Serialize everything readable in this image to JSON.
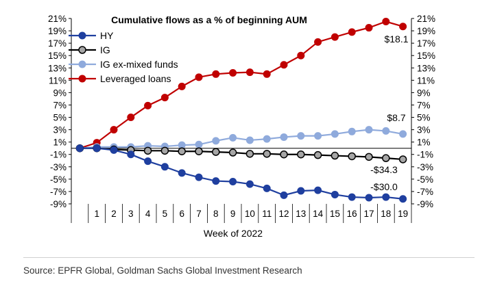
{
  "chart_data": {
    "type": "line",
    "title": "Cumulative flows as a % of beginning AUM",
    "xlabel": "Week of 2022",
    "ylabel": "",
    "x": [
      0,
      1,
      2,
      3,
      4,
      5,
      6,
      7,
      8,
      9,
      10,
      11,
      12,
      13,
      14,
      15,
      16,
      17,
      18,
      19
    ],
    "x_tick_labels": [
      "1",
      "2",
      "3",
      "4",
      "5",
      "6",
      "7",
      "8",
      "9",
      "10",
      "11",
      "12",
      "13",
      "14",
      "15",
      "16",
      "17",
      "18",
      "19"
    ],
    "ylim": [
      -9,
      21
    ],
    "y_tick_labels": [
      "21%",
      "19%",
      "17%",
      "15%",
      "13%",
      "11%",
      "9%",
      "7%",
      "5%",
      "3%",
      "1%",
      "-1%",
      "-3%",
      "-5%",
      "-7%",
      "-9%"
    ],
    "y_ticks": [
      21,
      19,
      17,
      15,
      13,
      11,
      9,
      7,
      5,
      3,
      1,
      -1,
      -3,
      -5,
      -7,
      -9
    ],
    "grid": false,
    "legend": "top-left",
    "series": [
      {
        "name": "HY",
        "color": "#1f3f9f",
        "values": [
          0,
          0,
          -0.3,
          -1,
          -2.1,
          -3,
          -4,
          -4.7,
          -5.3,
          -5.4,
          -5.8,
          -6.5,
          -7.6,
          -6.9,
          -6.8,
          -7.5,
          -7.9,
          -8.0,
          -7.9,
          -8.2
        ]
      },
      {
        "name": "IG",
        "color": "#000000",
        "marker_fill": "#a6a6a6",
        "values": [
          0,
          0,
          -0.2,
          -0.3,
          -0.4,
          -0.4,
          -0.5,
          -0.5,
          -0.6,
          -0.7,
          -0.9,
          -0.9,
          -1.0,
          -1.0,
          -1.1,
          -1.2,
          -1.3,
          -1.4,
          -1.6,
          -1.8
        ]
      },
      {
        "name": "IG ex-mixed funds",
        "color": "#8faadc",
        "values": [
          0,
          0.2,
          0.2,
          0.2,
          0.4,
          0.3,
          0.5,
          0.6,
          1.2,
          1.7,
          1.3,
          1.5,
          1.8,
          2.0,
          2.0,
          2.3,
          2.7,
          3.0,
          2.8,
          2.3
        ]
      },
      {
        "name": "Leveraged loans",
        "color": "#c00000",
        "values": [
          0,
          0.9,
          3.0,
          5.0,
          6.9,
          8.2,
          10.0,
          11.5,
          12.0,
          12.2,
          12.3,
          12.0,
          13.5,
          15.0,
          17.2,
          18.0,
          18.8,
          19.5,
          20.5,
          19.7
        ]
      }
    ],
    "annotations": [
      {
        "text": "$18.1",
        "series": "Leveraged loans"
      },
      {
        "text": "$8.7",
        "series": "IG ex-mixed funds"
      },
      {
        "text": "-$34.3",
        "series": "IG"
      },
      {
        "text": "-$30.0",
        "series": "HY"
      }
    ]
  },
  "source": "Source: EPFR Global, Goldman Sachs Global Investment Research"
}
